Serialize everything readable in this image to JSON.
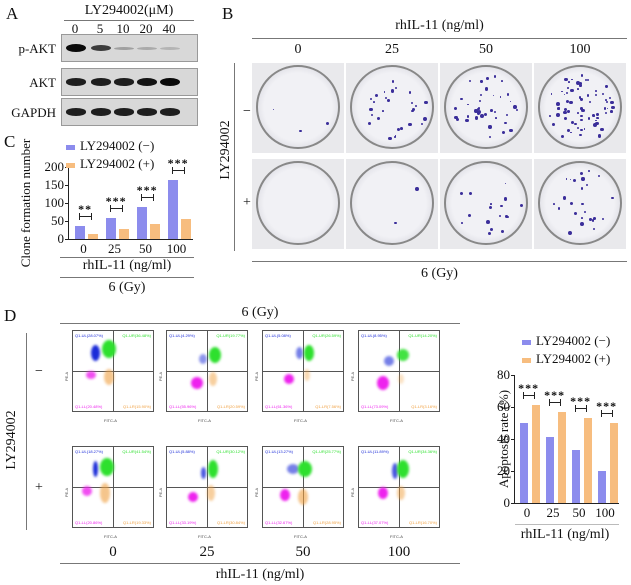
{
  "panels": {
    "A": {
      "letter": "A",
      "treatment_header": "LY294002(μM)",
      "lanes": [
        "0",
        "5",
        "10",
        "20",
        "40"
      ],
      "rows": [
        {
          "label": "p-AKT",
          "band_intensity": [
            1.0,
            0.75,
            0.25,
            0.2,
            0.15
          ]
        },
        {
          "label": "AKT",
          "band_intensity": [
            0.9,
            0.9,
            0.9,
            0.95,
            1.0
          ]
        },
        {
          "label": "GAPDH",
          "band_intensity": [
            0.9,
            0.9,
            0.9,
            0.9,
            0.9
          ]
        }
      ]
    },
    "B": {
      "letter": "B",
      "column_header": "rhIL-11 (ng/ml)",
      "columns": [
        "0",
        "25",
        "50",
        "100"
      ],
      "row_axis_label": "LY294002",
      "rows": [
        "−",
        "+"
      ],
      "footer": "6 (Gy)"
    },
    "C": {
      "letter": "C",
      "footer_axis": "rhIL-11 (ng/ml)",
      "footer": "6 (Gy)"
    },
    "D": {
      "letter": "D",
      "header": "6 (Gy)",
      "row_axis_label": "LY294002",
      "rows": [
        "−",
        "+"
      ],
      "columns": [
        "0",
        "25",
        "50",
        "100"
      ],
      "footer_axis": "rhIL-11 (ng/ml)",
      "flow_axes": {
        "x": "FITC-A",
        "y": "PE-A"
      },
      "flow_plots": [
        {
          "row": "−",
          "col": "0",
          "UL": "Q1-UL(28.07%)",
          "UR": "Q1-UR(36.48%)",
          "LL": "Q1-LL(20.48%)",
          "LR": "Q1-LR(15.90%)"
        },
        {
          "row": "−",
          "col": "25",
          "UL": "Q1-UL(4.29%)",
          "UR": "Q1-UR(19.77%)",
          "LL": "Q1-LL(55.96%)",
          "LR": "Q1-LR(20.59%)"
        },
        {
          "row": "−",
          "col": "50",
          "UL": "Q1-UL(5.08%)",
          "UR": "Q1-UR(26.59%)",
          "LL": "Q1-LL(61.36%)",
          "LR": "Q1-LR(7.56%)"
        },
        {
          "row": "−",
          "col": "100",
          "UL": "Q1-UL(8.95%)",
          "UR": "Q1-UR(14.20%)",
          "LL": "Q1-LL(73.09%)",
          "LR": "Q1-LR(3.16%)"
        },
        {
          "row": "+",
          "col": "0",
          "UL": "Q1-UL(18.27%)",
          "UR": "Q1-UR(41.54%)",
          "LL": "Q1-LL(20.86%)",
          "LR": "Q1-LR(19.33%)"
        },
        {
          "row": "+",
          "col": "25",
          "UL": "Q1-UL(5.88%)",
          "UR": "Q1-UR(30.12%)",
          "LL": "Q1-LL(33.19%)",
          "LR": "Q1-LR(30.84%)"
        },
        {
          "row": "+",
          "col": "50",
          "UL": "Q1-UL(13.27%)",
          "UR": "Q1-UR(25.77%)",
          "LL": "Q1-LL(32.67%)",
          "LR": "Q1-LR(28.95%)"
        },
        {
          "row": "+",
          "col": "100",
          "UL": "Q1-UL(11.89%)",
          "UR": "Q1-UR(34.36%)",
          "LL": "Q1-LL(37.07%)",
          "LR": "Q1-LR(16.70%)"
        }
      ]
    }
  },
  "colors": {
    "series_minus": "#8c8ced",
    "series_plus": "#f7bd7f",
    "flow_UL": "#1a2bd8",
    "flow_UR": "#2ee02e",
    "flow_LL": "#ee22ee",
    "flow_LR": "#f0a040"
  },
  "chart_data": [
    {
      "type": "bar",
      "title": "",
      "categories": [
        "0",
        "25",
        "50",
        "100"
      ],
      "xlabel": "rhIL-11 (ng/ml)",
      "ylabel": "Clone formation number",
      "ylim": [
        0,
        200
      ],
      "yticks": [
        0,
        50,
        100,
        150,
        200
      ],
      "legend": [
        "LY294002 (−)",
        "LY294002 (+)"
      ],
      "legend_position": "top-left",
      "series": [
        {
          "name": "LY294002 (−)",
          "values": [
            37,
            57,
            90,
            165
          ]
        },
        {
          "name": "LY294002 (+)",
          "values": [
            15,
            27,
            42,
            55
          ]
        }
      ],
      "annotations": [
        "**",
        "***",
        "***",
        "***"
      ],
      "footer": "6 (Gy)"
    },
    {
      "type": "bar",
      "title": "",
      "categories": [
        "0",
        "25",
        "50",
        "100"
      ],
      "xlabel": "rhIL-11 (ng/ml)",
      "ylabel": "Apoptosis rate (%)",
      "ylim": [
        0,
        80
      ],
      "yticks": [
        0,
        20,
        40,
        60,
        80
      ],
      "legend": [
        "LY294002 (−)",
        "LY294002 (+)"
      ],
      "legend_position": "top",
      "series": [
        {
          "name": "LY294002 (−)",
          "values": [
            50,
            41,
            33,
            20
          ]
        },
        {
          "name": "LY294002 (+)",
          "values": [
            61,
            57,
            53,
            50
          ]
        }
      ],
      "annotations": [
        "***",
        "***",
        "***",
        "***"
      ]
    }
  ]
}
